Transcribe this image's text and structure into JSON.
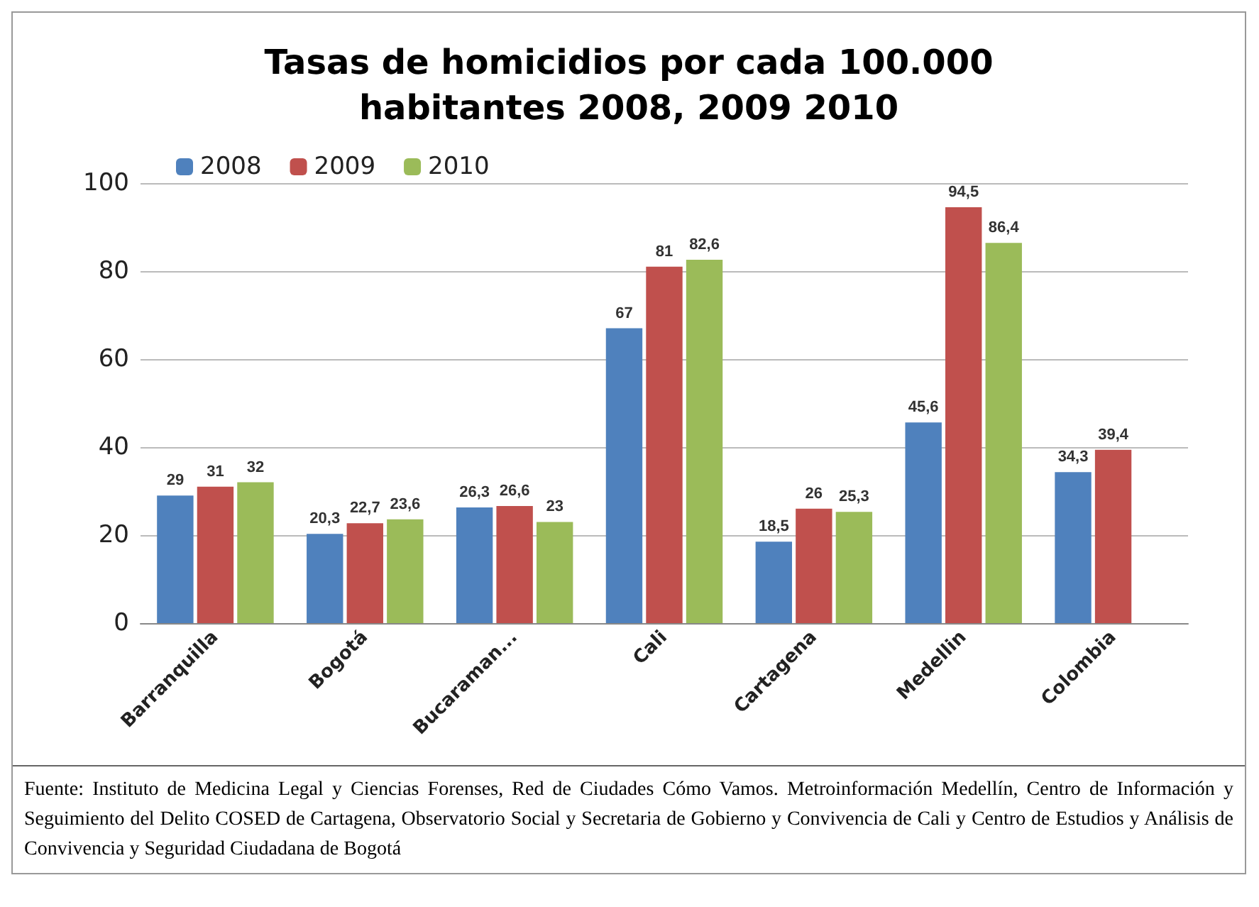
{
  "chart_data": {
    "type": "bar",
    "title": "Tasas de homicidios por cada 100.000\nhabitantes 2008, 2009 2010",
    "categories": [
      "Barranquilla",
      "Bogotá",
      "Bucaraman...",
      "Cali",
      "Cartagena",
      "Medellin",
      "Colombia"
    ],
    "series": [
      {
        "name": "2008",
        "color": "#4f81bd",
        "values": [
          29,
          20.3,
          26.3,
          67,
          18.5,
          45.6,
          34.3
        ],
        "value_labels": [
          "29",
          "20,3",
          "26,3",
          "67",
          "18,5",
          "45,6",
          "34,3"
        ]
      },
      {
        "name": "2009",
        "color": "#c0504d",
        "values": [
          31,
          22.7,
          26.6,
          81,
          26,
          94.5,
          39.4
        ],
        "value_labels": [
          "31",
          "22,7",
          "26,6",
          "81",
          "26",
          "94,5",
          "39,4"
        ]
      },
      {
        "name": "2010",
        "color": "#9bbb59",
        "values": [
          32,
          23.6,
          23,
          82.6,
          25.3,
          86.4,
          null
        ],
        "value_labels": [
          "32",
          "23,6",
          "23",
          "82,6",
          "25,3",
          "86,4",
          null
        ]
      }
    ],
    "ylim": [
      0,
      100
    ],
    "yticks": [
      0,
      20,
      40,
      60,
      80,
      100
    ],
    "grid": "y",
    "legend": "top left",
    "annotations": [
      "Fuente: Instituto de Medicina Legal y Ciencias Forenses, Red de Ciudades Cómo Vamos. Metroinformación Medellín, Centro de Información y Seguimiento del Delito COSED de Cartagena, Observatorio Social y Secretaria de Gobierno y Convivencia de Cali y Centro de Estudios y Análisis de Convivencia y Seguridad Ciudadana de Bogotá"
    ]
  }
}
